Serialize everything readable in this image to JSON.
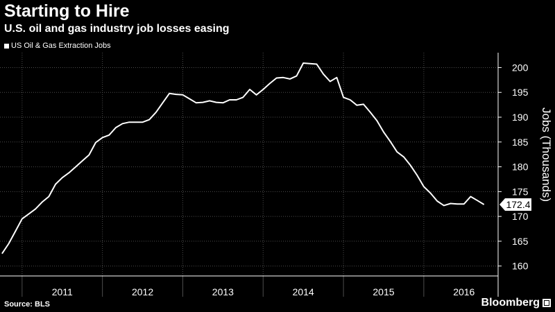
{
  "header": {
    "title": "Starting to Hire",
    "subtitle": "U.S. oil and gas industry job losses easing"
  },
  "footer": {
    "source": "Source: BLS",
    "brand": "Bloomberg"
  },
  "colors": {
    "background": "#000000",
    "line": "#ffffff",
    "grid": "#4d4d4d",
    "text": "#ffffff"
  },
  "chart_data": {
    "type": "line",
    "title": "Starting to Hire",
    "subtitle": "U.S. oil and gas industry job losses easing",
    "ylabel": "Jobs (Thousands)",
    "xlabel": "",
    "ylim": [
      158,
      203
    ],
    "yticks": [
      160,
      165,
      170,
      175,
      180,
      185,
      190,
      195,
      200
    ],
    "x_range": [
      "2010-10",
      "2016-12"
    ],
    "xticks": [
      "2011",
      "2012",
      "2013",
      "2014",
      "2015",
      "2016"
    ],
    "grid": true,
    "legend": "top-left",
    "last_value_label": "172.4",
    "series": [
      {
        "name": "US Oil & Gas Extraction Jobs",
        "x": [
          "2010-10",
          "2010-11",
          "2010-12",
          "2011-01",
          "2011-02",
          "2011-03",
          "2011-04",
          "2011-05",
          "2011-06",
          "2011-07",
          "2011-08",
          "2011-09",
          "2011-10",
          "2011-11",
          "2011-12",
          "2012-01",
          "2012-02",
          "2012-03",
          "2012-04",
          "2012-05",
          "2012-06",
          "2012-07",
          "2012-08",
          "2012-09",
          "2012-10",
          "2012-11",
          "2012-12",
          "2013-01",
          "2013-02",
          "2013-03",
          "2013-04",
          "2013-05",
          "2013-06",
          "2013-07",
          "2013-08",
          "2013-09",
          "2013-10",
          "2013-11",
          "2013-12",
          "2014-01",
          "2014-02",
          "2014-03",
          "2014-04",
          "2014-05",
          "2014-06",
          "2014-07",
          "2014-08",
          "2014-09",
          "2014-10",
          "2014-11",
          "2014-12",
          "2015-01",
          "2015-02",
          "2015-03",
          "2015-04",
          "2015-05",
          "2015-06",
          "2015-07",
          "2015-08",
          "2015-09",
          "2015-10",
          "2015-11",
          "2015-12",
          "2016-01",
          "2016-02",
          "2016-03",
          "2016-04",
          "2016-05",
          "2016-06",
          "2016-07",
          "2016-08",
          "2016-09",
          "2016-10"
        ],
        "values": [
          162.5,
          164.5,
          167.0,
          169.5,
          170.5,
          171.5,
          172.9,
          174.0,
          176.5,
          177.8,
          178.8,
          180.0,
          181.2,
          182.4,
          184.9,
          185.9,
          186.4,
          187.9,
          188.7,
          189.0,
          189.0,
          189.0,
          189.5,
          191.0,
          192.9,
          194.8,
          194.6,
          194.5,
          193.7,
          192.9,
          193.0,
          193.3,
          193.0,
          192.9,
          193.5,
          193.5,
          194.0,
          195.6,
          194.5,
          195.6,
          196.8,
          197.9,
          198.0,
          197.7,
          198.3,
          200.9,
          200.8,
          200.7,
          198.7,
          197.2,
          198.0,
          194.0,
          193.5,
          192.4,
          192.6,
          191.0,
          189.3,
          187.0,
          185.1,
          183.0,
          182.0,
          180.3,
          178.3,
          176.0,
          174.7,
          173.1,
          172.2,
          172.6,
          172.5,
          172.5,
          174.0,
          173.2,
          172.4
        ]
      }
    ]
  }
}
